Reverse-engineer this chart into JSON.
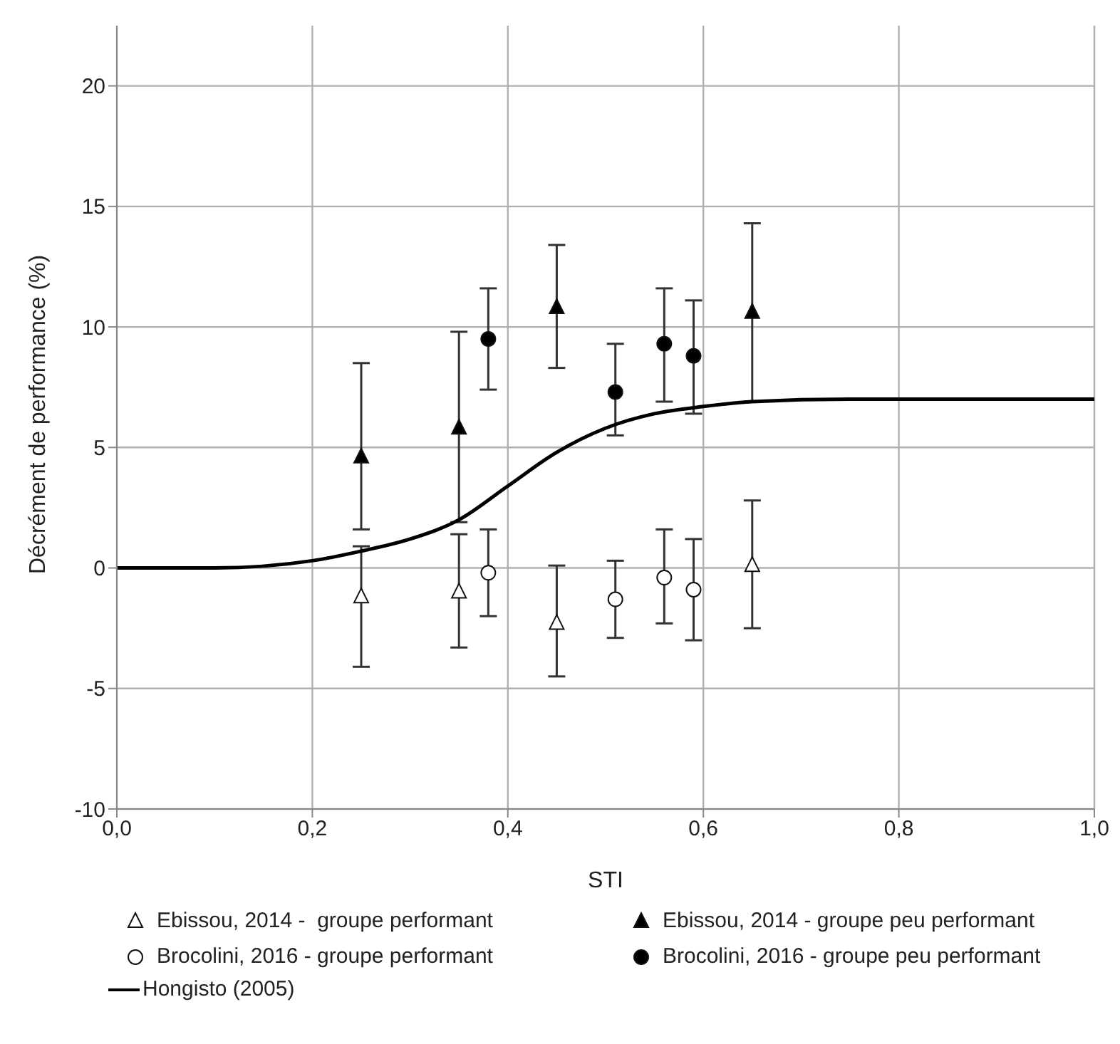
{
  "chart_data": {
    "type": "scatter",
    "xlabel": "STI",
    "ylabel": "Décrément de performance (%)",
    "xlim": [
      0,
      1
    ],
    "xticks": [
      {
        "value": 0,
        "label": "0,0"
      },
      {
        "value": 0.2,
        "label": "0,2"
      },
      {
        "value": 0.4,
        "label": "0,4"
      },
      {
        "value": 0.6,
        "label": "0,6"
      },
      {
        "value": 0.8,
        "label": "0,8"
      },
      {
        "value": 1,
        "label": "1,0"
      }
    ],
    "ylim": [
      -10,
      22.5
    ],
    "yticks": [
      -10,
      -5,
      0,
      5,
      10,
      15,
      20
    ],
    "grid": true,
    "legend": "bottom",
    "series": [
      {
        "name": "Ebissou, 2014 -  groupe performant",
        "marker": "triangle",
        "color": "#ffffff",
        "x": [
          0.25,
          0.35,
          0.45,
          0.65
        ],
        "values": [
          -1.2,
          -1.0,
          -2.3,
          0.1
        ],
        "errors": [
          [
            -4.1,
            0.9
          ],
          [
            -3.3,
            1.4
          ],
          [
            -4.5,
            0.1
          ],
          [
            -2.5,
            2.8
          ]
        ]
      },
      {
        "name": "Ebissou, 2014 - groupe peu performant",
        "marker": "triangle",
        "color": "#000000",
        "x": [
          0.25,
          0.35,
          0.45,
          0.65
        ],
        "values": [
          4.6,
          5.8,
          10.8,
          10.6
        ],
        "errors": [
          [
            1.6,
            8.5
          ],
          [
            1.9,
            9.8
          ],
          [
            8.3,
            13.4
          ],
          [
            6.9,
            14.3
          ]
        ]
      },
      {
        "name": "Brocolini, 2016 - groupe performant",
        "marker": "circle",
        "color": "#ffffff",
        "x": [
          0.38,
          0.51,
          0.56,
          0.59
        ],
        "values": [
          -0.2,
          -1.3,
          -0.4,
          -0.9
        ],
        "errors": [
          [
            -2.0,
            1.6
          ],
          [
            -2.9,
            0.3
          ],
          [
            -2.3,
            1.6
          ],
          [
            -3.0,
            1.2
          ]
        ]
      },
      {
        "name": "Brocolini, 2016 - groupe peu performant",
        "marker": "circle",
        "color": "#000000",
        "x": [
          0.38,
          0.51,
          0.56,
          0.59
        ],
        "values": [
          9.5,
          7.3,
          9.3,
          8.8
        ],
        "errors": [
          [
            7.4,
            11.6
          ],
          [
            5.5,
            9.3
          ],
          [
            6.9,
            11.6
          ],
          [
            6.4,
            11.1
          ]
        ]
      },
      {
        "name": "Hongisto (2005)",
        "type": "line",
        "marker": "none",
        "line_style": "solid",
        "color": "#000000",
        "x": [
          0,
          0.1,
          0.2,
          0.25,
          0.3,
          0.35,
          0.4,
          0.45,
          0.5,
          0.55,
          0.6,
          0.65,
          0.75,
          1.0
        ],
        "values": [
          0,
          0,
          0.3,
          0.7,
          1.2,
          2.0,
          3.4,
          4.8,
          5.8,
          6.4,
          6.7,
          6.9,
          7.0,
          7.0
        ]
      }
    ]
  }
}
